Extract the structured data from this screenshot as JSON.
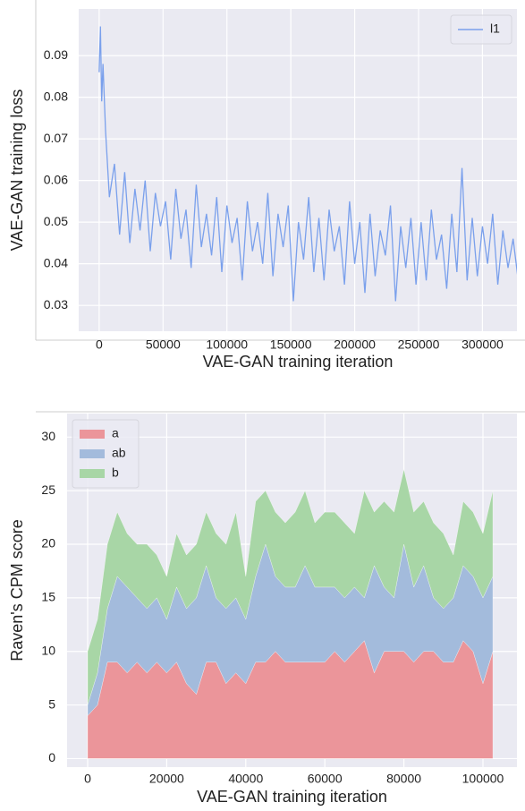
{
  "chart_data": [
    {
      "type": "line",
      "ylabel": "VAE-GAN training loss",
      "xlabel": "VAE-GAN training iteration",
      "x": [
        0,
        1000,
        2000,
        3000,
        5000,
        8000,
        12000,
        16000,
        20000,
        24000,
        28000,
        32000,
        36000,
        40000,
        44000,
        48000,
        52000,
        56000,
        60000,
        64000,
        68000,
        72000,
        76000,
        80000,
        84000,
        88000,
        92000,
        96000,
        100000,
        104000,
        108000,
        112000,
        116000,
        120000,
        124000,
        128000,
        132000,
        136000,
        140000,
        144000,
        148000,
        152000,
        156000,
        160000,
        164000,
        168000,
        172000,
        176000,
        180000,
        184000,
        188000,
        192000,
        196000,
        200000,
        204000,
        208000,
        212000,
        216000,
        220000,
        224000,
        228000,
        232000,
        236000,
        240000,
        244000,
        248000,
        252000,
        256000,
        260000,
        264000,
        268000,
        272000,
        276000,
        280000,
        284000,
        288000,
        292000,
        296000,
        300000,
        304000,
        308000,
        312000,
        316000,
        320000,
        324000,
        328000
      ],
      "series": [
        {
          "name": "l1",
          "color": "#7aa0ec",
          "values": [
            0.086,
            0.097,
            0.079,
            0.088,
            0.072,
            0.056,
            0.064,
            0.047,
            0.062,
            0.045,
            0.058,
            0.048,
            0.06,
            0.043,
            0.057,
            0.049,
            0.055,
            0.041,
            0.058,
            0.046,
            0.053,
            0.039,
            0.059,
            0.044,
            0.052,
            0.042,
            0.056,
            0.038,
            0.054,
            0.045,
            0.051,
            0.036,
            0.055,
            0.043,
            0.05,
            0.04,
            0.057,
            0.037,
            0.052,
            0.044,
            0.054,
            0.031,
            0.05,
            0.041,
            0.056,
            0.038,
            0.051,
            0.036,
            0.053,
            0.043,
            0.049,
            0.035,
            0.055,
            0.04,
            0.05,
            0.033,
            0.052,
            0.037,
            0.048,
            0.042,
            0.054,
            0.031,
            0.049,
            0.039,
            0.051,
            0.035,
            0.05,
            0.036,
            0.053,
            0.041,
            0.047,
            0.034,
            0.052,
            0.038,
            0.063,
            0.036,
            0.051,
            0.037,
            0.049,
            0.04,
            0.052,
            0.035,
            0.048,
            0.039,
            0.046,
            0.036
          ]
        }
      ],
      "xlim": [
        -16000,
        327000
      ],
      "xticks": [
        0,
        50000,
        100000,
        150000,
        200000,
        250000,
        300000
      ],
      "ylim": [
        0.0238,
        0.1012
      ],
      "yticks": [
        0.03,
        0.04,
        0.05,
        0.06,
        0.07,
        0.08,
        0.09
      ],
      "grid": true,
      "legend": "upper right"
    },
    {
      "type": "stacked_area",
      "ylabel": "Raven's CPM score",
      "xlabel": "VAE-GAN training iteration",
      "x": [
        0,
        2500,
        5000,
        7500,
        10000,
        12500,
        15000,
        17500,
        20000,
        22500,
        25000,
        27500,
        30000,
        32500,
        35000,
        37500,
        40000,
        42500,
        45000,
        47500,
        50000,
        52500,
        55000,
        57500,
        60000,
        62500,
        65000,
        67500,
        70000,
        72500,
        75000,
        77500,
        80000,
        82500,
        85000,
        87500,
        90000,
        92500,
        95000,
        97500,
        100000,
        102500
      ],
      "series": [
        {
          "name": "a",
          "color": "#eb959a",
          "values": [
            4,
            5,
            9,
            9,
            8,
            9,
            8,
            9,
            8,
            9,
            7,
            6,
            9,
            9,
            7,
            8,
            7,
            9,
            9,
            10,
            9,
            9,
            9,
            9,
            9,
            10,
            9,
            10,
            11,
            8,
            10,
            10,
            10,
            9,
            10,
            10,
            9,
            9,
            11,
            10,
            7,
            10
          ]
        },
        {
          "name": "ab",
          "color": "#a3bbdc",
          "values": [
            1,
            3,
            5,
            8,
            8,
            6,
            6,
            6,
            5,
            7,
            7,
            9,
            9,
            6,
            7,
            7,
            6,
            8,
            11,
            7,
            7,
            7,
            9,
            7,
            7,
            6,
            6,
            6,
            4,
            10,
            6,
            5,
            10,
            7,
            8,
            5,
            5,
            6,
            7,
            7,
            8,
            7
          ]
        },
        {
          "name": "b",
          "color": "#a8d6a6",
          "values": [
            5,
            5,
            6,
            6,
            5,
            5,
            6,
            4,
            4,
            5,
            5,
            5,
            5,
            6,
            6,
            8,
            4,
            7,
            5,
            6,
            6,
            7,
            7,
            6,
            7,
            7,
            7,
            5,
            10,
            5,
            8,
            8,
            7,
            7,
            6,
            7,
            7,
            4,
            6,
            6,
            6,
            8
          ]
        }
      ],
      "xlim": [
        -5200,
        108600
      ],
      "xticks": [
        0,
        20000,
        40000,
        60000,
        80000,
        100000
      ],
      "ylim": [
        -0.8,
        32.2
      ],
      "yticks": [
        0,
        5,
        10,
        15,
        20,
        25,
        30
      ],
      "grid": true,
      "legend": "upper left"
    }
  ]
}
